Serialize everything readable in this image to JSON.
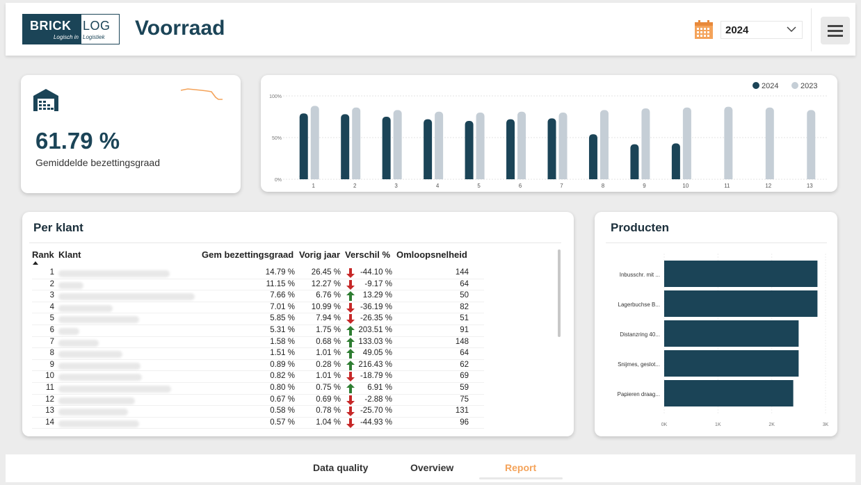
{
  "header": {
    "logo": {
      "word_left": "BRICK",
      "word_right": "LOG",
      "sub_left": "Logisch in",
      "sub_right": "Logistiek"
    },
    "title": "Voorraad",
    "year_select": {
      "value": "2024",
      "icon": "calendar-icon"
    },
    "menu_icon": "hamburger-menu-icon"
  },
  "kpi": {
    "value": "61.79 %",
    "label": "Gemiddelde bezettingsgraad",
    "icon": "warehouse-icon",
    "accent": "#f4a35a"
  },
  "chart_data": [
    {
      "type": "bar",
      "categories": [
        "1",
        "2",
        "3",
        "4",
        "5",
        "6",
        "7",
        "8",
        "9",
        "10",
        "11",
        "12",
        "13"
      ],
      "series": [
        {
          "name": "2024",
          "color": "#1b4457",
          "values": [
            79,
            78,
            75,
            72,
            70,
            72,
            73,
            54,
            42,
            43,
            null,
            null,
            null
          ]
        },
        {
          "name": "2023",
          "color": "#c5ced6",
          "values": [
            88,
            86,
            83,
            81,
            80,
            81,
            80,
            83,
            85,
            86,
            87,
            86,
            83
          ]
        }
      ],
      "y_ticks": [
        "0%",
        "50%",
        "100%"
      ],
      "ylim": [
        0,
        100
      ],
      "grid": true,
      "legend": "top-right"
    },
    {
      "type": "bar",
      "orientation": "horizontal",
      "title": "Producten",
      "categories": [
        "Inbusschr. mit ...",
        "Lagerbuchse B...",
        "Distanzring 40...",
        "Snijmes, geslot...",
        "Papieren draag..."
      ],
      "values": [
        2850,
        2850,
        2500,
        2500,
        2400
      ],
      "x_ticks": [
        "0K",
        "1K",
        "2K",
        "3K"
      ],
      "xlim": [
        0,
        3000
      ],
      "color": "#1b4457"
    }
  ],
  "per_klant": {
    "title": "Per klant",
    "columns": [
      "Rank",
      "Klant",
      "Gem bezettingsgraad",
      "Vorig jaar",
      "Verschil %",
      "Omloopsnelheid"
    ],
    "rows": [
      {
        "rank": "1",
        "gem": "14.79 %",
        "vorig": "26.45 %",
        "dir": "down",
        "verschil": "-44.10 %",
        "omloop": "144"
      },
      {
        "rank": "2",
        "gem": "11.15 %",
        "vorig": "12.27 %",
        "dir": "down",
        "verschil": "-9.17 %",
        "omloop": "64"
      },
      {
        "rank": "3",
        "gem": "7.66 %",
        "vorig": "6.76 %",
        "dir": "up",
        "verschil": "13.29 %",
        "omloop": "50"
      },
      {
        "rank": "4",
        "gem": "7.01 %",
        "vorig": "10.99 %",
        "dir": "down",
        "verschil": "-36.19 %",
        "omloop": "82"
      },
      {
        "rank": "5",
        "gem": "5.85 %",
        "vorig": "7.94 %",
        "dir": "down",
        "verschil": "-26.35 %",
        "omloop": "51"
      },
      {
        "rank": "6",
        "gem": "5.31 %",
        "vorig": "1.75 %",
        "dir": "up",
        "verschil": "203.51 %",
        "omloop": "91"
      },
      {
        "rank": "7",
        "gem": "1.58 %",
        "vorig": "0.68 %",
        "dir": "up",
        "verschil": "133.03 %",
        "omloop": "148"
      },
      {
        "rank": "8",
        "gem": "1.51 %",
        "vorig": "1.01 %",
        "dir": "up",
        "verschil": "49.05 %",
        "omloop": "64"
      },
      {
        "rank": "9",
        "gem": "0.89 %",
        "vorig": "0.28 %",
        "dir": "up",
        "verschil": "216.43 %",
        "omloop": "62"
      },
      {
        "rank": "10",
        "gem": "0.82 %",
        "vorig": "1.01 %",
        "dir": "down",
        "verschil": "-18.79 %",
        "omloop": "69"
      },
      {
        "rank": "11",
        "gem": "0.80 %",
        "vorig": "0.75 %",
        "dir": "up",
        "verschil": "6.91 %",
        "omloop": "59"
      },
      {
        "rank": "12",
        "gem": "0.67 %",
        "vorig": "0.69 %",
        "dir": "down",
        "verschil": "-2.88 %",
        "omloop": "75"
      },
      {
        "rank": "13",
        "gem": "0.58 %",
        "vorig": "0.78 %",
        "dir": "down",
        "verschil": "-25.70 %",
        "omloop": "131"
      },
      {
        "rank": "14",
        "gem": "0.57 %",
        "vorig": "1.04 %",
        "dir": "down",
        "verschil": "-44.93 %",
        "omloop": "96"
      }
    ],
    "colors": {
      "up": "#2e7d32",
      "down": "#c62828"
    }
  },
  "footer": {
    "tabs": [
      {
        "label": "Data quality",
        "active": false
      },
      {
        "label": "Overview",
        "active": false
      },
      {
        "label": "Report",
        "active": true
      }
    ]
  }
}
